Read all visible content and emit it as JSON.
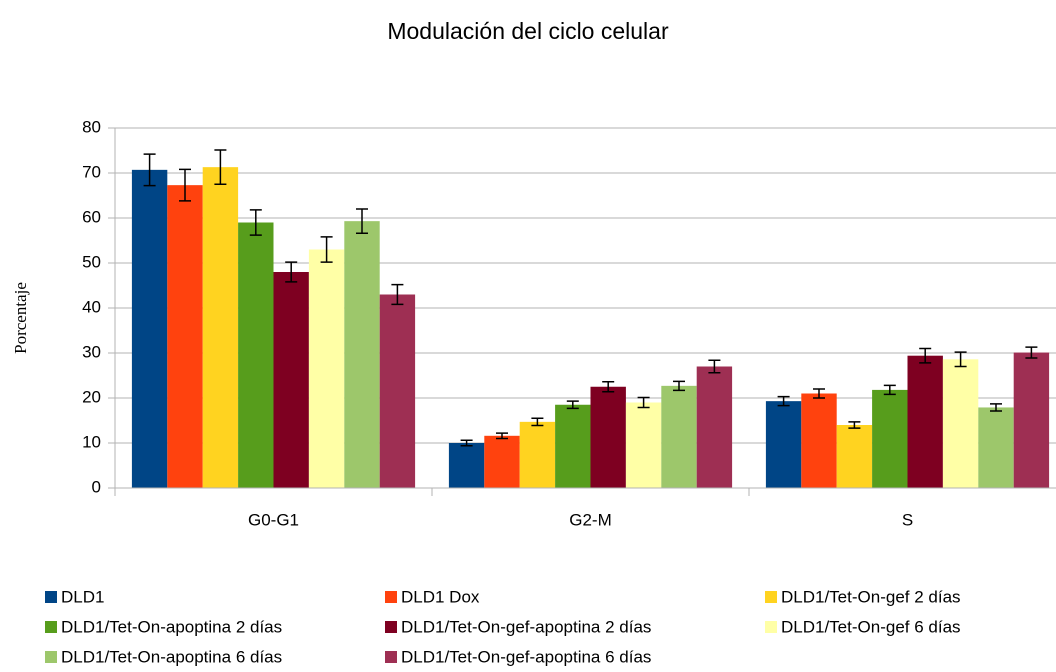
{
  "chart_data": {
    "type": "bar",
    "title": "Modulación del ciclo celular",
    "y_label": "Porcentaje",
    "categories": [
      "G0-G1",
      "G2-M",
      "S"
    ],
    "ylim": [
      0,
      80
    ],
    "yticks": [
      0,
      10,
      20,
      30,
      40,
      50,
      60,
      70,
      80
    ],
    "grid": true,
    "series": [
      {
        "name": "DLD1",
        "color": "#004586",
        "values": [
          70.7,
          10,
          19.3
        ],
        "errors": [
          3.5,
          0.6,
          1
        ]
      },
      {
        "name": "DLD1 Dox",
        "color": "#ff420e",
        "values": [
          67.3,
          11.6,
          21
        ],
        "errors": [
          3.5,
          0.6,
          1
        ]
      },
      {
        "name": "DLD1/Tet-On-gef 2 días",
        "color": "#ffd320",
        "values": [
          71.3,
          14.7,
          14
        ],
        "errors": [
          3.8,
          0.8,
          0.7
        ]
      },
      {
        "name": "DLD1/Tet-On-apoptina 2 días",
        "color": "#579d1c",
        "values": [
          59,
          18.5,
          21.8
        ],
        "errors": [
          2.8,
          0.8,
          1
        ]
      },
      {
        "name": "DLD1/Tet-On-gef-apoptina 2 días",
        "color": "#7e0021",
        "values": [
          48,
          22.5,
          29.4
        ],
        "errors": [
          2.2,
          1.1,
          1.6
        ]
      },
      {
        "name": "DLD1/Tet-On-gef 6 días",
        "color": "#ffffa6",
        "values": [
          53,
          19,
          28.6
        ],
        "errors": [
          2.8,
          1.1,
          1.6
        ]
      },
      {
        "name": "DLD1/Tet-On-apoptina 6 días",
        "color": "#9dc76b",
        "values": [
          59.3,
          22.7,
          17.9
        ],
        "errors": [
          2.7,
          1,
          0.8
        ]
      },
      {
        "name": "DLD1/Tet-On-gef-apoptina 6 días",
        "color": "#9e2f53",
        "values": [
          43,
          27,
          30.1
        ],
        "errors": [
          2.2,
          1.4,
          1.2
        ]
      }
    ]
  }
}
